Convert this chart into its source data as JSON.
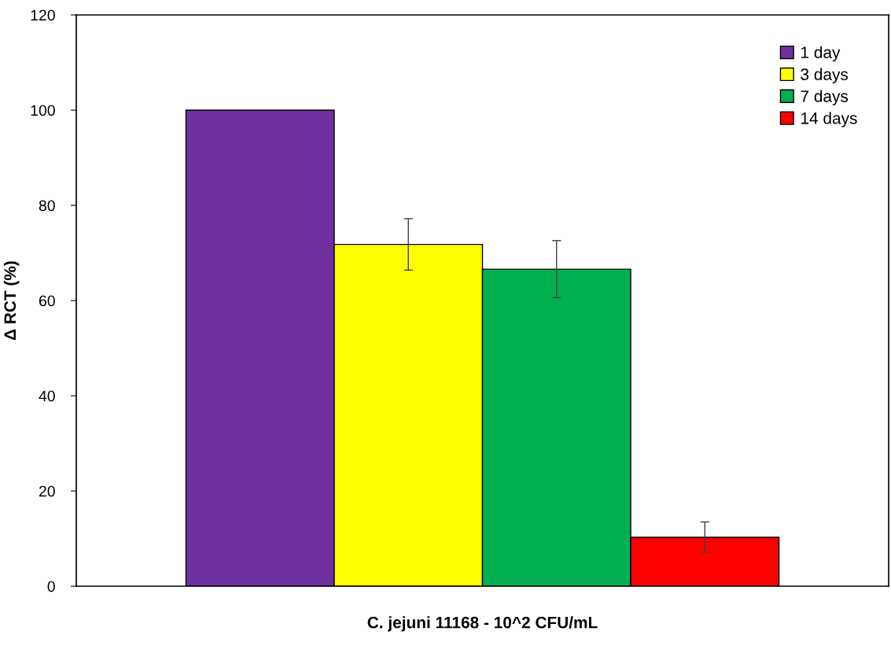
{
  "chart_data": {
    "type": "bar",
    "xlabel": "C. jejuni 11168 - 10^2 CFU/mL",
    "ylabel": "Δ RCT (%)",
    "categories": [
      null
    ],
    "series": [
      {
        "name": "1 day",
        "color": "#7030a0",
        "values": [
          100
        ],
        "errors": [
          null
        ]
      },
      {
        "name": "3 days",
        "color": "#ffff00",
        "values": [
          71.8
        ],
        "errors": [
          5.4
        ]
      },
      {
        "name": "7 days",
        "color": "#00b050",
        "values": [
          66.6
        ],
        "errors": [
          6
        ]
      },
      {
        "name": "14 days",
        "color": "#ff0000",
        "values": [
          10.3
        ],
        "errors": [
          3.2
        ]
      }
    ],
    "ylim": [
      0,
      120
    ],
    "yticks": [
      0,
      20,
      40,
      60,
      80,
      100,
      120
    ],
    "grid": false,
    "legend": "top right"
  }
}
